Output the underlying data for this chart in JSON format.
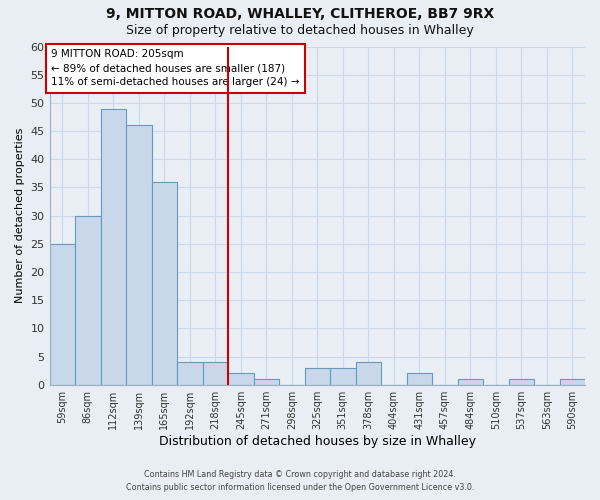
{
  "title": "9, MITTON ROAD, WHALLEY, CLITHEROE, BB7 9RX",
  "subtitle": "Size of property relative to detached houses in Whalley",
  "xlabel": "Distribution of detached houses by size in Whalley",
  "ylabel": "Number of detached properties",
  "bar_labels": [
    "59sqm",
    "86sqm",
    "112sqm",
    "139sqm",
    "165sqm",
    "192sqm",
    "218sqm",
    "245sqm",
    "271sqm",
    "298sqm",
    "325sqm",
    "351sqm",
    "378sqm",
    "404sqm",
    "431sqm",
    "457sqm",
    "484sqm",
    "510sqm",
    "537sqm",
    "563sqm",
    "590sqm"
  ],
  "bar_values": [
    25,
    30,
    49,
    46,
    36,
    4,
    4,
    2,
    1,
    0,
    3,
    3,
    4,
    0,
    2,
    0,
    1,
    0,
    1,
    0,
    1
  ],
  "bar_color": "#c8d8ea",
  "bar_edge_color": "#6699bb",
  "grid_color": "#c8d8ea",
  "ylim": [
    0,
    60
  ],
  "yticks": [
    0,
    5,
    10,
    15,
    20,
    25,
    30,
    35,
    40,
    45,
    50,
    55,
    60
  ],
  "property_line_x": 6.5,
  "property_line_color": "#cc0000",
  "annotation_line1": "9 MITTON ROAD: 205sqm",
  "annotation_line2": "← 89% of detached houses are smaller (187)",
  "annotation_line3": "11% of semi-detached houses are larger (24) →",
  "footer_line1": "Contains HM Land Registry data © Crown copyright and database right 2024.",
  "footer_line2": "Contains public sector information licensed under the Open Government Licence v3.0.",
  "bg_color": "#e8eef4",
  "plot_bg_color": "#e8eef4"
}
